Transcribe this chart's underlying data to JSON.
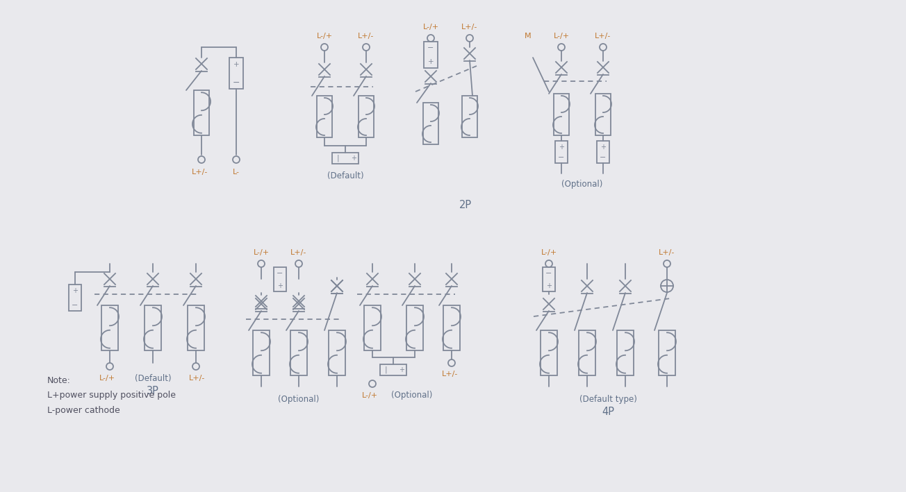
{
  "background_color": "#e9e9ed",
  "line_color": "#808898",
  "label_color": "#c07830",
  "text_color": "#607088",
  "note_color": "#505060",
  "note_lines": [
    "Note:",
    "L+power supply positive pole",
    "L-power cathode"
  ]
}
